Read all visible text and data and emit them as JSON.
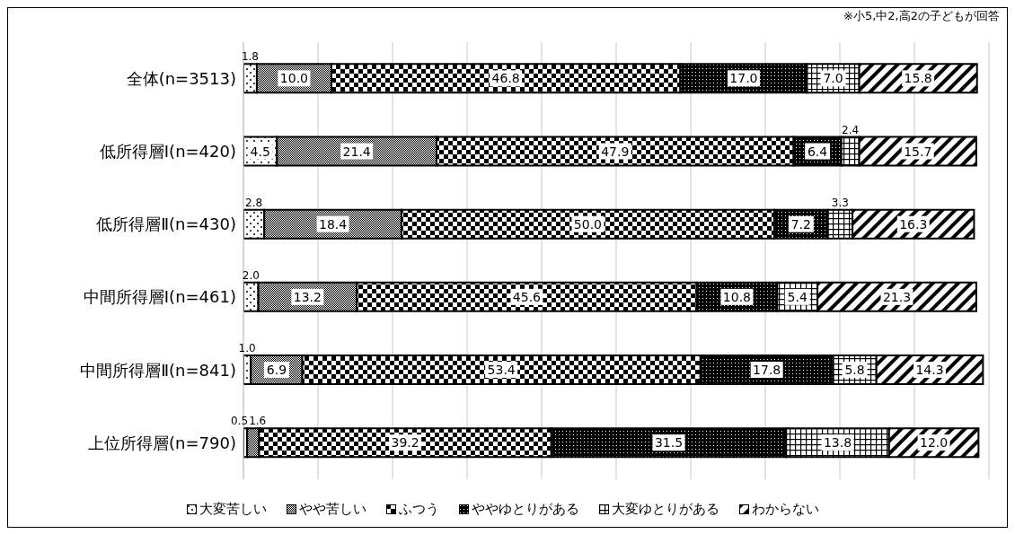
{
  "chart_data": {
    "type": "bar",
    "orientation": "horizontal",
    "stacked": true,
    "categories": [
      "全体(n=3513)",
      "低所得層Ⅰ(n=420)",
      "低所得層Ⅱ(n=430)",
      "中間所得層Ⅰ(n=461)",
      "中間所得層Ⅱ(n=841)",
      "上位所得層(n=790)"
    ],
    "series": [
      {
        "name": "大変苦しい",
        "color": "#000000",
        "values": [
          1.8,
          4.5,
          2.8,
          2.0,
          1.0,
          0.5
        ],
        "value_labels": [
          "1.8",
          "4.5",
          "2.8",
          "2.0",
          "1.0",
          "0.5"
        ]
      },
      {
        "name": "やや苦しい",
        "color": "#000000",
        "values": [
          10.0,
          21.4,
          18.4,
          13.2,
          6.9,
          1.6
        ],
        "value_labels": [
          "10.0",
          "21.4",
          "18.4",
          "13.2",
          "6.9",
          "1.6"
        ]
      },
      {
        "name": "ふつう",
        "color": "#000000",
        "values": [
          46.8,
          47.9,
          50.0,
          45.6,
          53.4,
          39.2
        ],
        "value_labels": [
          "46.8",
          "47.9",
          "50.0",
          "45.6",
          "53.4",
          "39.2"
        ]
      },
      {
        "name": "ややゆとりがある",
        "color": "#000000",
        "values": [
          17.0,
          6.4,
          7.2,
          10.8,
          17.8,
          31.5
        ],
        "value_labels": [
          "17.0",
          "6.4",
          "7.2",
          "10.8",
          "17.8",
          "31.5"
        ]
      },
      {
        "name": "大変ゆとりがある",
        "color": "#000000",
        "values": [
          7.0,
          2.4,
          3.3,
          5.4,
          5.8,
          13.8
        ],
        "value_labels": [
          "7.0",
          "2.4",
          "3.3",
          "5.4",
          "5.8",
          "13.8"
        ]
      },
      {
        "name": "わからない",
        "color": "#000000",
        "values": [
          15.8,
          15.7,
          16.3,
          21.3,
          14.3,
          12.0
        ],
        "value_labels": [
          "15.8",
          "15.7",
          "16.3",
          "21.3",
          "14.3",
          "12.0"
        ]
      }
    ],
    "xlim": [
      0,
      100
    ],
    "tick_labels": "y",
    "grid": "x",
    "legend": "bottom",
    "annotations": [
      "※小5,中2,高2の子どもが回答"
    ]
  }
}
